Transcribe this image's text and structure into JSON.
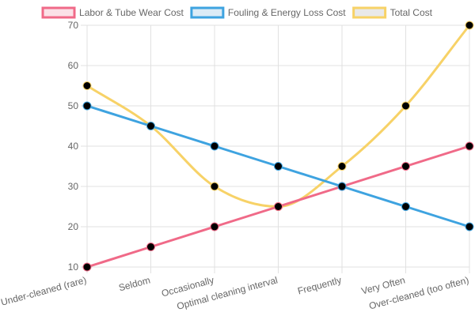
{
  "chart_data": {
    "type": "line",
    "categories": [
      "Under-cleaned (rare)",
      "Seldom",
      "Occasionally",
      "Optimal cleaning interval",
      "Frequently",
      "Very Often",
      "Over-cleaned (too often)"
    ],
    "series": [
      {
        "name": "Labor & Tube Wear Cost",
        "values": [
          10,
          15,
          20,
          25,
          30,
          35,
          40
        ],
        "color": "#f06a88",
        "fill": "#fbe1e7",
        "curved": false
      },
      {
        "name": "Fouling & Energy Loss Cost",
        "values": [
          50,
          45,
          40,
          35,
          30,
          25,
          20
        ],
        "color": "#3ea3e0",
        "fill": "#dcebf6",
        "curved": false
      },
      {
        "name": "Total Cost",
        "values": [
          55,
          45,
          30,
          25,
          35,
          50,
          70
        ],
        "color": "#f7d267",
        "fill": "#e9e9e9",
        "curved": true
      }
    ],
    "point_color": "#000000",
    "ylim": [
      10,
      70
    ],
    "yticks": [
      10,
      20,
      30,
      40,
      50,
      60,
      70
    ],
    "grid": true,
    "legend_position": "top"
  }
}
